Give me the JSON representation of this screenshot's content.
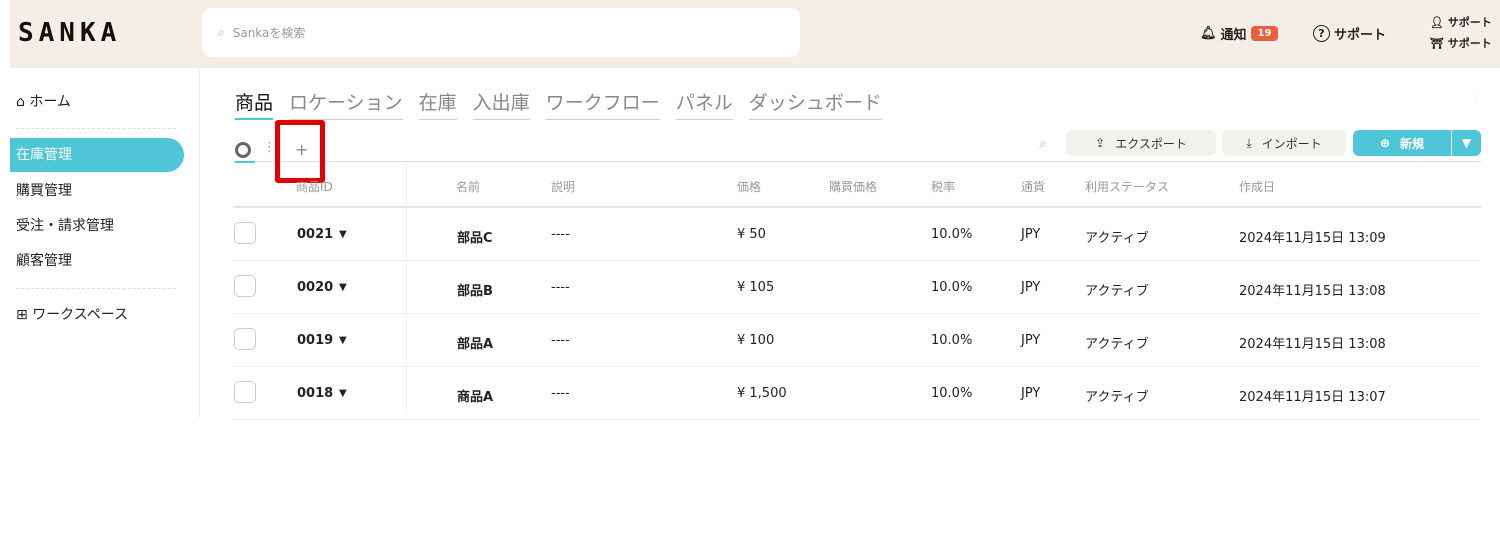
{
  "header": {
    "logo": "SANKA",
    "search_placeholder": "Sankaを検索",
    "notifications_label": "通知",
    "notifications_count": "19",
    "support_label": "サポート",
    "user_line1": "サポート",
    "user_line2": "サポート"
  },
  "sidebar": {
    "items": [
      {
        "label": "ホーム",
        "icon": "home-icon"
      },
      {
        "label": "在庫管理",
        "active": true
      },
      {
        "label": "購買管理"
      },
      {
        "label": "受注・請求管理"
      },
      {
        "label": "顧客管理"
      },
      {
        "label": "ワークスペース",
        "icon": "workspace-icon"
      }
    ]
  },
  "tabs": [
    {
      "label": "商品",
      "active": true
    },
    {
      "label": "ロケーション"
    },
    {
      "label": "在庫"
    },
    {
      "label": "入出庫"
    },
    {
      "label": "ワークフロー"
    },
    {
      "label": "パネル"
    },
    {
      "label": "ダッシュボード"
    }
  ],
  "toolbar": {
    "export_label": "エクスポート",
    "import_label": "インポート",
    "new_label": "新規",
    "add_view": "+"
  },
  "table": {
    "columns": [
      "商品ID",
      "名前",
      "説明",
      "価格",
      "購買価格",
      "税率",
      "通貨",
      "利用ステータス",
      "作成日"
    ],
    "rows": [
      [
        "0021",
        "部品C",
        "----",
        "¥ 50",
        "",
        "10.0%",
        "JPY",
        "アクティブ",
        "2024年11月15日 13:09"
      ],
      [
        "0020",
        "部品B",
        "----",
        "¥ 105",
        "",
        "10.0%",
        "JPY",
        "アクティブ",
        "2024年11月15日 13:08"
      ],
      [
        "0019",
        "部品A",
        "----",
        "¥ 100",
        "",
        "10.0%",
        "JPY",
        "アクティブ",
        "2024年11月15日 13:08"
      ],
      [
        "0018",
        "商品A",
        "----",
        "¥ 1,500",
        "",
        "10.0%",
        "JPY",
        "アクティブ",
        "2024年11月15日 13:07"
      ]
    ]
  },
  "colors": {
    "accent": "#4ec6d8",
    "header_bg": "#f4efe6",
    "badge": "#e8603c",
    "highlight": "#e00000"
  }
}
